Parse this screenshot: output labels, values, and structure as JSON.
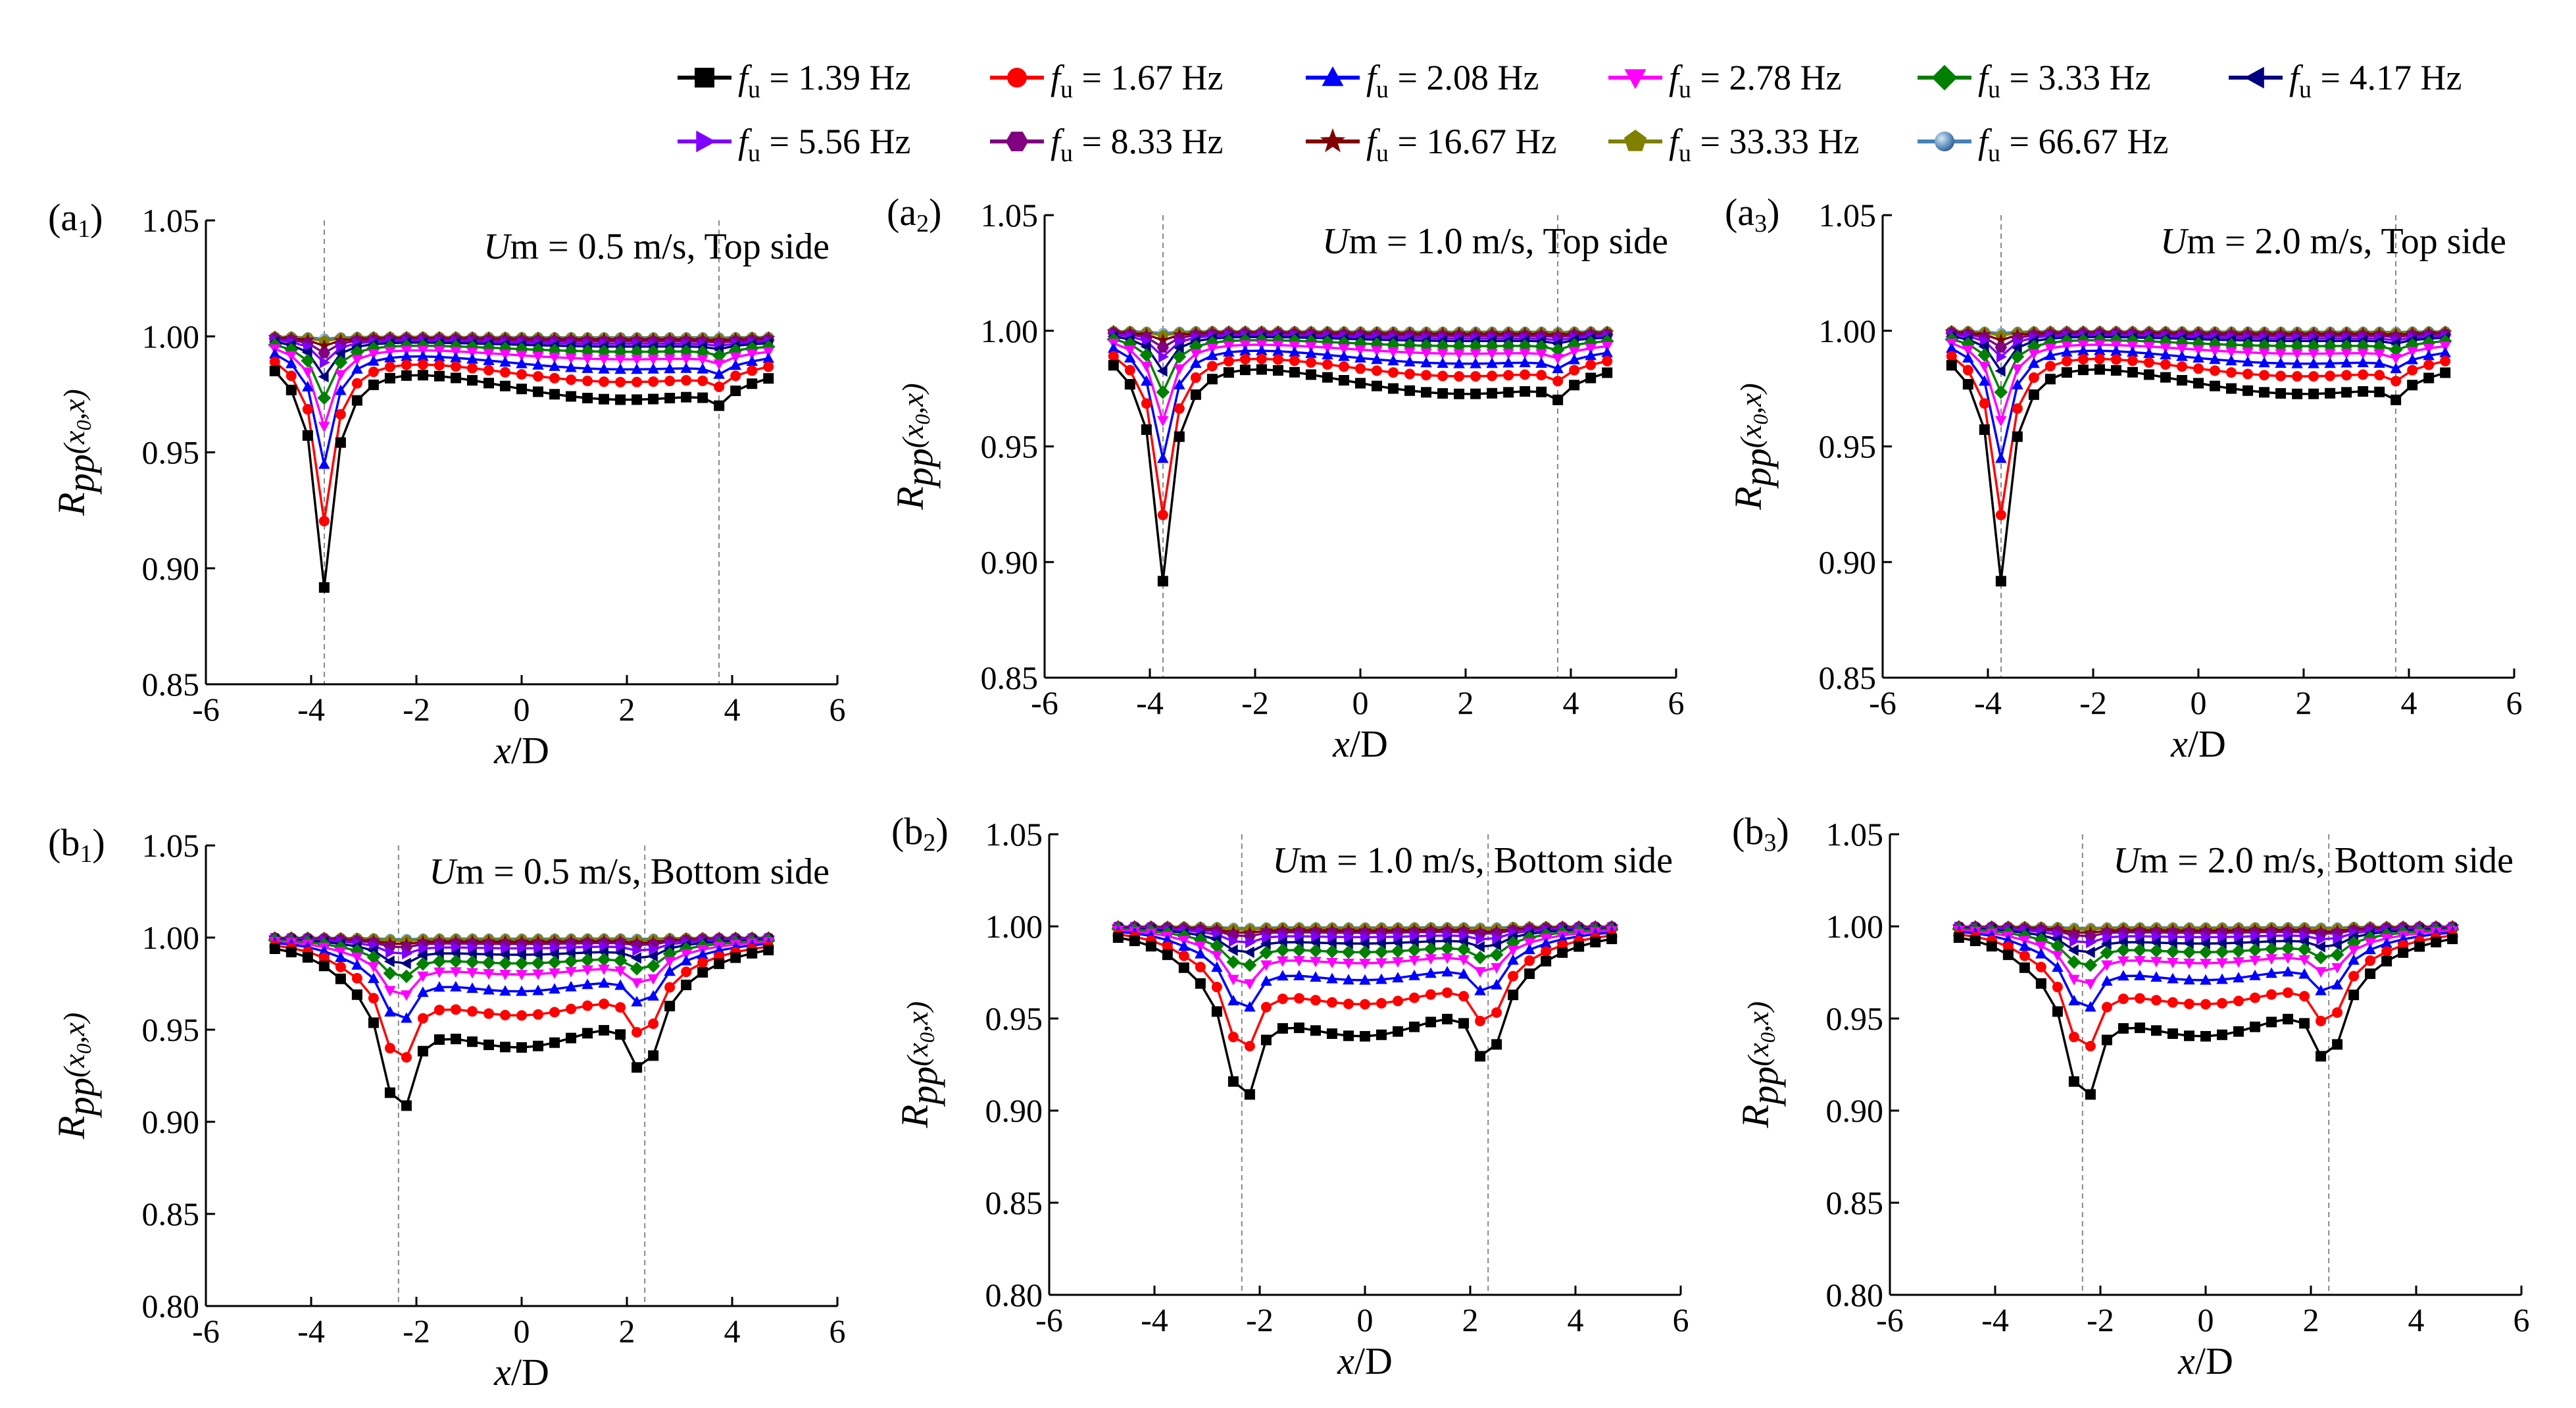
{
  "legend": [
    {
      "var": "f",
      "sub": "u",
      "value": "= 1.39 Hz",
      "color": "#000000",
      "marker": "square"
    },
    {
      "var": "f",
      "sub": "u",
      "value": "= 1.67 Hz",
      "color": "#ff0000",
      "marker": "circle"
    },
    {
      "var": "f",
      "sub": "u",
      "value": "= 2.08 Hz",
      "color": "#0000ff",
      "marker": "triangle-up"
    },
    {
      "var": "f",
      "sub": "u",
      "value": "= 2.78 Hz",
      "color": "#ff00ff",
      "marker": "triangle-down"
    },
    {
      "var": "f",
      "sub": "u",
      "value": "= 3.33 Hz",
      "color": "#008000",
      "marker": "diamond"
    },
    {
      "var": "f",
      "sub": "u",
      "value": "= 4.17 Hz",
      "color": "#000080",
      "marker": "triangle-left"
    },
    {
      "var": "f",
      "sub": "u",
      "value": "= 5.56 Hz",
      "color": "#8000ff",
      "marker": "triangle-right"
    },
    {
      "var": "f",
      "sub": "u",
      "value": "= 8.33 Hz",
      "color": "#800080",
      "marker": "hexagon"
    },
    {
      "var": "f",
      "sub": "u",
      "value": "= 16.67 Hz",
      "color": "#800000",
      "marker": "star"
    },
    {
      "var": "f",
      "sub": "u",
      "value": "= 33.33 Hz",
      "color": "#808000",
      "marker": "pentagon"
    },
    {
      "var": "f",
      "sub": "u",
      "value": "= 66.67 Hz",
      "color": "#4682b4",
      "marker": "sphere"
    }
  ],
  "axis_titles": {
    "x": "x/D",
    "y_main": "R",
    "y_sub": "pp",
    "y_args": "(x",
    "y_args_sub": "0",
    "y_args_end": ",x)"
  },
  "chart_data": [
    {
      "type": "line",
      "panel": "(a",
      "panel_sub": "1",
      "panel_end": ")",
      "u_label": "U",
      "u_sub": "m",
      "condition": "= 0.5 m/s, Top side",
      "xlim": [
        -6,
        6
      ],
      "ylim": [
        0.85,
        1.05
      ],
      "xticks": [
        -6,
        -4,
        -2,
        0,
        2,
        4,
        6
      ],
      "yticks": [
        "0.85",
        "0.90",
        "0.95",
        "1.00",
        "1.05"
      ],
      "sensor_lines": [
        -3.75,
        3.75
      ],
      "x_range": [
        -4.69,
        4.69
      ],
      "n_points": 31,
      "dips": [
        {
          "x": -3.75,
          "depth": [
            0.106,
            0.078,
            0.054,
            0.038,
            0.026,
            0.017,
            0.011,
            0.007,
            0.004,
            0.002,
            0.001
          ]
        },
        {
          "x": 3.75,
          "depth": [
            0.008,
            0.006,
            0.005,
            0.004,
            0.003,
            0.002,
            0.0015,
            0.001,
            0.0007,
            0.0004,
            0.0002
          ]
        }
      ],
      "broad": [
        0.025,
        0.018,
        0.013,
        0.009,
        0.006,
        0.004,
        0.003,
        0.002,
        0.0012,
        0.0008,
        0.0004
      ],
      "broad_center": 2.0,
      "broad_width": 4.0
    },
    {
      "type": "line",
      "panel": "(a",
      "panel_sub": "2",
      "panel_end": ")",
      "u_label": "U",
      "u_sub": "m",
      "condition": "= 1.0 m/s, Top side",
      "xlim": [
        -6,
        6
      ],
      "ylim": [
        0.85,
        1.05
      ],
      "xticks": [
        -6,
        -4,
        -2,
        0,
        2,
        4,
        6
      ],
      "yticks": [
        "0.85",
        "0.90",
        "0.95",
        "1.00",
        "1.05"
      ],
      "sensor_lines": [
        -3.75,
        3.75
      ],
      "x_range": [
        -4.69,
        4.69
      ],
      "n_points": 31,
      "dips": [
        {
          "x": -3.75,
          "depth": [
            0.106,
            0.078,
            0.054,
            0.038,
            0.026,
            0.017,
            0.011,
            0.007,
            0.004,
            0.002,
            0.001
          ]
        },
        {
          "x": 3.75,
          "depth": [
            0.008,
            0.006,
            0.005,
            0.004,
            0.003,
            0.002,
            0.0015,
            0.001,
            0.0007,
            0.0004,
            0.0002
          ]
        }
      ],
      "broad": [
        0.025,
        0.018,
        0.013,
        0.009,
        0.006,
        0.004,
        0.003,
        0.002,
        0.0012,
        0.0008,
        0.0004
      ],
      "broad_center": 2.0,
      "broad_width": 4.0
    },
    {
      "type": "line",
      "panel": "(a",
      "panel_sub": "3",
      "panel_end": ")",
      "u_label": "U",
      "u_sub": "m",
      "condition": "= 2.0 m/s, Top side",
      "xlim": [
        -6,
        6
      ],
      "ylim": [
        0.85,
        1.05
      ],
      "xticks": [
        -6,
        -4,
        -2,
        0,
        2,
        4,
        6
      ],
      "yticks": [
        "0.85",
        "0.90",
        "0.95",
        "1.00",
        "1.05"
      ],
      "sensor_lines": [
        -3.75,
        3.75
      ],
      "x_range": [
        -4.69,
        4.69
      ],
      "n_points": 31,
      "dips": [
        {
          "x": -3.75,
          "depth": [
            0.106,
            0.078,
            0.054,
            0.038,
            0.026,
            0.017,
            0.011,
            0.007,
            0.004,
            0.002,
            0.001
          ]
        },
        {
          "x": 3.75,
          "depth": [
            0.008,
            0.006,
            0.005,
            0.004,
            0.003,
            0.002,
            0.0015,
            0.001,
            0.0007,
            0.0004,
            0.0002
          ]
        }
      ],
      "broad": [
        0.025,
        0.018,
        0.013,
        0.009,
        0.006,
        0.004,
        0.003,
        0.002,
        0.0012,
        0.0008,
        0.0004
      ],
      "broad_center": 2.0,
      "broad_width": 4.0
    },
    {
      "type": "line",
      "panel": "(b",
      "panel_sub": "1",
      "panel_end": ")",
      "u_label": "U",
      "u_sub": "m",
      "condition": "= 0.5 m/s, Bottom side",
      "xlim": [
        -6,
        6
      ],
      "ylim": [
        0.8,
        1.05
      ],
      "xticks": [
        -6,
        -4,
        -2,
        0,
        2,
        4,
        6
      ],
      "yticks": [
        "0.80",
        "0.85",
        "0.90",
        "0.95",
        "1.00",
        "1.05"
      ],
      "sensor_lines": [
        -2.34,
        2.34
      ],
      "x_range": [
        -4.69,
        4.69
      ],
      "n_points": 31,
      "dips": [
        {
          "x": -2.34,
          "depth": [
            0.105,
            0.075,
            0.05,
            0.036,
            0.024,
            0.016,
            0.01,
            0.006,
            0.004,
            0.002,
            0.001
          ]
        },
        {
          "x": 2.34,
          "depth": [
            0.07,
            0.052,
            0.035,
            0.025,
            0.017,
            0.011,
            0.007,
            0.004,
            0.003,
            0.0015,
            0.0007
          ]
        }
      ],
      "broad": [
        0.051,
        0.036,
        0.025,
        0.017,
        0.012,
        0.008,
        0.005,
        0.003,
        0.002,
        0.001,
        0.0005
      ],
      "broad_center": 0.0,
      "broad_width": 2.6
    },
    {
      "type": "line",
      "panel": "(b",
      "panel_sub": "2",
      "panel_end": ")",
      "u_label": "U",
      "u_sub": "m",
      "condition": "= 1.0 m/s, Bottom side",
      "xlim": [
        -6,
        6
      ],
      "ylim": [
        0.8,
        1.05
      ],
      "xticks": [
        -6,
        -4,
        -2,
        0,
        2,
        4,
        6
      ],
      "yticks": [
        "0.80",
        "0.85",
        "0.90",
        "0.95",
        "1.00",
        "1.05"
      ],
      "sensor_lines": [
        -2.34,
        2.34
      ],
      "x_range": [
        -4.69,
        4.69
      ],
      "n_points": 31,
      "dips": [
        {
          "x": -2.34,
          "depth": [
            0.105,
            0.075,
            0.05,
            0.036,
            0.024,
            0.016,
            0.01,
            0.006,
            0.004,
            0.002,
            0.001
          ]
        },
        {
          "x": 2.34,
          "depth": [
            0.07,
            0.052,
            0.035,
            0.025,
            0.017,
            0.011,
            0.007,
            0.004,
            0.003,
            0.0015,
            0.0007
          ]
        }
      ],
      "broad": [
        0.051,
        0.036,
        0.025,
        0.017,
        0.012,
        0.008,
        0.005,
        0.003,
        0.002,
        0.001,
        0.0005
      ],
      "broad_center": 0.0,
      "broad_width": 2.6
    },
    {
      "type": "line",
      "panel": "(b",
      "panel_sub": "3",
      "panel_end": ")",
      "u_label": "U",
      "u_sub": "m",
      "condition": "= 2.0 m/s, Bottom side",
      "xlim": [
        -6,
        6
      ],
      "ylim": [
        0.8,
        1.05
      ],
      "xticks": [
        -6,
        -4,
        -2,
        0,
        2,
        4,
        6
      ],
      "yticks": [
        "0.80",
        "0.85",
        "0.90",
        "0.95",
        "1.00",
        "1.05"
      ],
      "sensor_lines": [
        -2.34,
        2.34
      ],
      "x_range": [
        -4.69,
        4.69
      ],
      "n_points": 31,
      "dips": [
        {
          "x": -2.34,
          "depth": [
            0.105,
            0.075,
            0.05,
            0.036,
            0.024,
            0.016,
            0.01,
            0.006,
            0.004,
            0.002,
            0.001
          ]
        },
        {
          "x": 2.34,
          "depth": [
            0.07,
            0.052,
            0.035,
            0.025,
            0.017,
            0.011,
            0.007,
            0.004,
            0.003,
            0.0015,
            0.0007
          ]
        }
      ],
      "broad": [
        0.051,
        0.036,
        0.025,
        0.017,
        0.012,
        0.008,
        0.005,
        0.003,
        0.002,
        0.001,
        0.0005
      ],
      "broad_center": 0.0,
      "broad_width": 2.6
    }
  ]
}
